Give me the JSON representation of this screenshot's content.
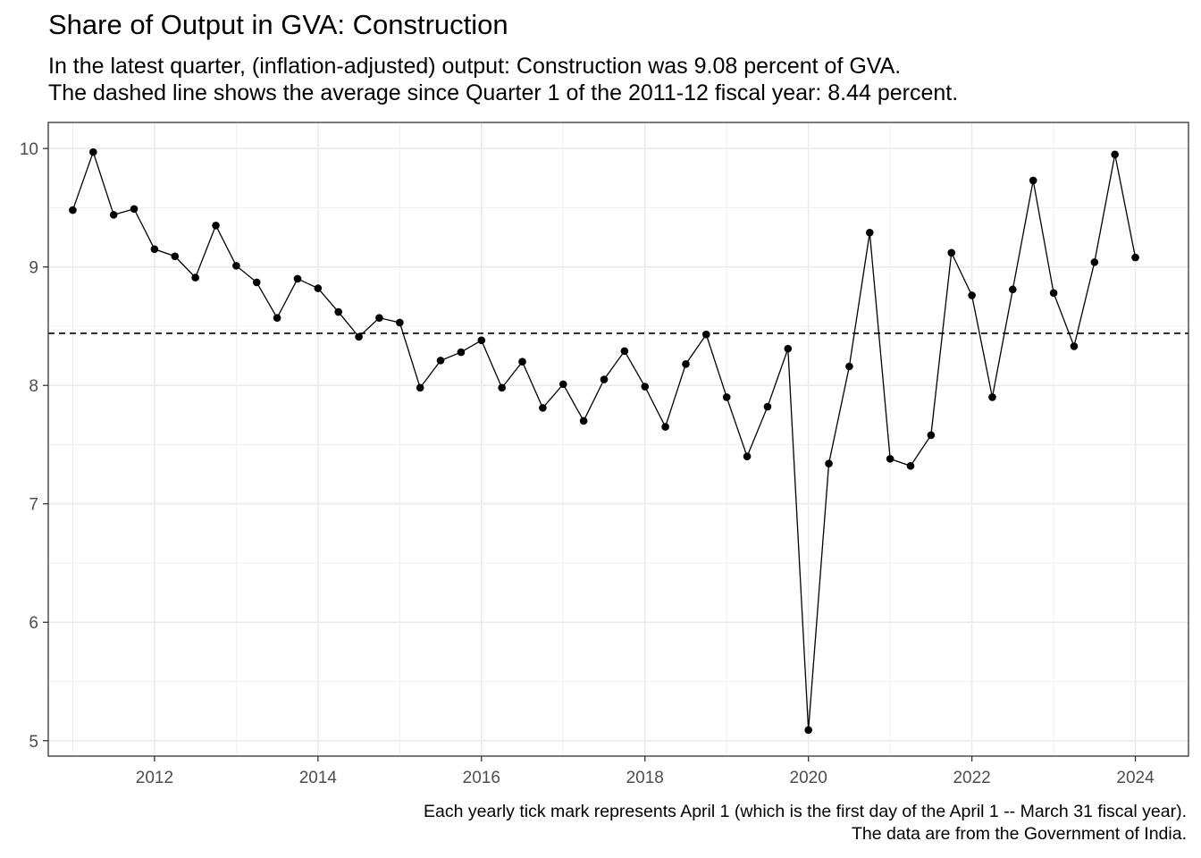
{
  "chart_data": {
    "type": "line",
    "title": "Share of Output in GVA: Construction",
    "subtitle": [
      "In the latest quarter, (inflation-adjusted) output: Construction was 9.08 percent of GVA.",
      "The dashed line shows the average since Quarter 1 of the 2011-12 fiscal year: 8.44 percent."
    ],
    "caption": [
      "Each yearly tick mark represents April 1 (which is the first day of the April 1 -- March 31 fiscal year).",
      "The data are from the Government of India."
    ],
    "xlabel": "",
    "ylabel": "",
    "xlim": [
      2010.7,
      2024.65
    ],
    "ylim": [
      4.87,
      10.22
    ],
    "x_ticks": [
      "2012",
      "2014",
      "2016",
      "2018",
      "2020",
      "2022",
      "2024"
    ],
    "y_ticks": [
      "5",
      "6",
      "7",
      "8",
      "9",
      "10"
    ],
    "grid": true,
    "average_line": 8.44,
    "x": [
      2011.0,
      2011.25,
      2011.5,
      2011.75,
      2012.0,
      2012.25,
      2012.5,
      2012.75,
      2013.0,
      2013.25,
      2013.5,
      2013.75,
      2014.0,
      2014.25,
      2014.5,
      2014.75,
      2015.0,
      2015.25,
      2015.5,
      2015.75,
      2016.0,
      2016.25,
      2016.5,
      2016.75,
      2017.0,
      2017.25,
      2017.5,
      2017.75,
      2018.0,
      2018.25,
      2018.5,
      2018.75,
      2019.0,
      2019.25,
      2019.5,
      2019.75,
      2020.0,
      2020.25,
      2020.5,
      2020.75,
      2021.0,
      2021.25,
      2021.5,
      2021.75,
      2022.0,
      2022.25,
      2022.5,
      2022.75,
      2023.0,
      2023.25,
      2023.5,
      2023.75,
      2024.0
    ],
    "values": [
      9.48,
      9.97,
      9.44,
      9.49,
      9.15,
      9.09,
      8.91,
      9.35,
      9.01,
      8.87,
      8.57,
      8.9,
      8.82,
      8.62,
      8.41,
      8.57,
      8.53,
      7.98,
      8.21,
      8.28,
      8.38,
      7.98,
      8.2,
      7.81,
      8.01,
      7.7,
      8.05,
      8.29,
      7.99,
      7.65,
      8.18,
      8.43,
      7.9,
      7.4,
      7.82,
      8.31,
      5.09,
      7.34,
      8.16,
      9.29,
      7.38,
      7.32,
      7.58,
      9.12,
      8.76,
      7.9,
      8.81,
      9.73,
      8.78,
      8.33,
      9.04,
      9.95,
      9.08
    ]
  }
}
